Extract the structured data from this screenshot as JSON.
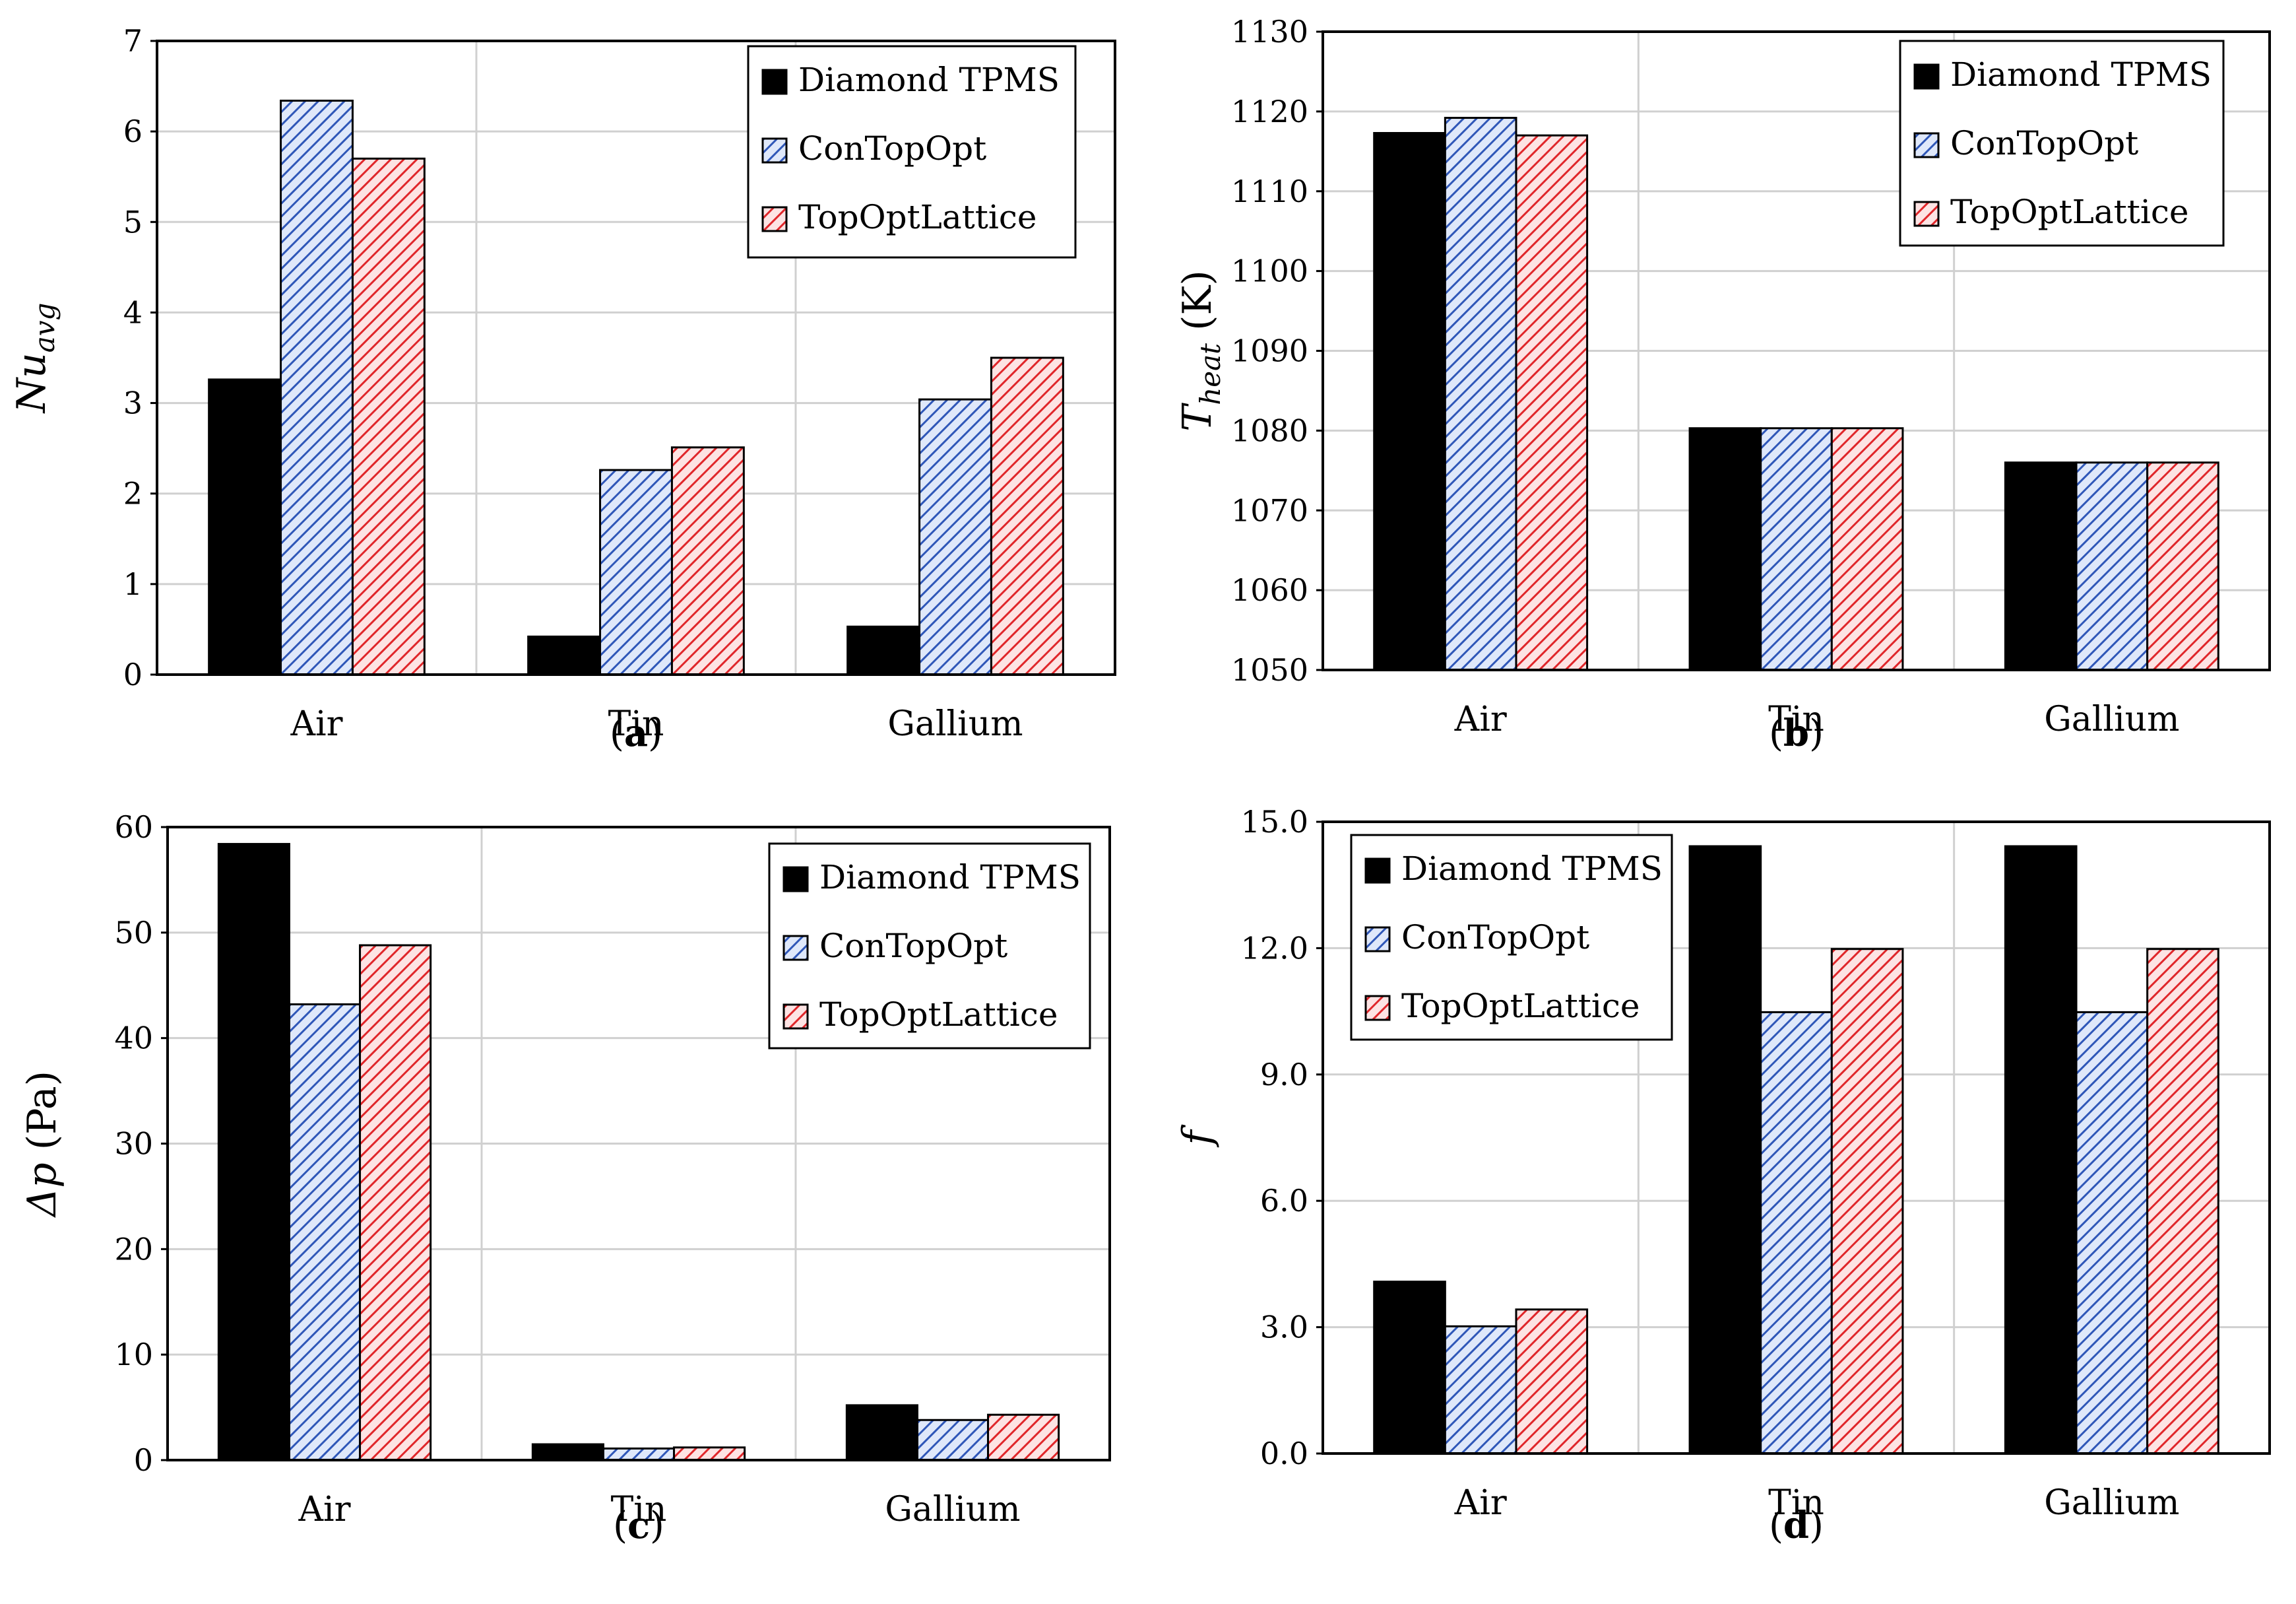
{
  "chart_data": [
    {
      "type": "bar",
      "panel": "a",
      "caption_letter": "a",
      "ylabel": {
        "main": "Nu",
        "sub": "avg"
      },
      "categories": [
        "Air",
        "Tin",
        "Gallium"
      ],
      "ylim": [
        0,
        7
      ],
      "yticks": [
        "0",
        "1",
        "2",
        "3",
        "4",
        "5",
        "6",
        "7"
      ],
      "series": [
        {
          "name": "Diamond TPMS",
          "values": [
            3.26,
            0.42,
            0.53
          ]
        },
        {
          "name": "ConTopOpt",
          "values": [
            6.34,
            2.26,
            3.04
          ]
        },
        {
          "name": "TopOptLattice",
          "values": [
            5.7,
            2.51,
            3.5
          ]
        }
      ],
      "legend": "top-right",
      "grid": true
    },
    {
      "type": "bar",
      "panel": "b",
      "caption_letter": "b",
      "ylabel": {
        "main": "T",
        "sub": "heat",
        "unit": " (K)"
      },
      "categories": [
        "Air",
        "Tin",
        "Gallium"
      ],
      "ylim": [
        1050,
        1130
      ],
      "yticks": [
        "1050",
        "1060",
        "1070",
        "1080",
        "1090",
        "1100",
        "1110",
        "1120",
        "1130"
      ],
      "series": [
        {
          "name": "Diamond TPMS",
          "values": [
            1117.3,
            1080.3,
            1076.0
          ]
        },
        {
          "name": "ConTopOpt",
          "values": [
            1119.2,
            1080.3,
            1076.0
          ]
        },
        {
          "name": "TopOptLattice",
          "values": [
            1117.0,
            1080.3,
            1076.0
          ]
        }
      ],
      "legend": "top-right",
      "grid": true
    },
    {
      "type": "bar",
      "panel": "c",
      "caption_letter": "c",
      "ylabel": {
        "main": "Δp",
        "unit": " (Pa)"
      },
      "categories": [
        "Air",
        "Tin",
        "Gallium"
      ],
      "ylim": [
        0,
        60
      ],
      "yticks": [
        "0",
        "10",
        "20",
        "30",
        "40",
        "50",
        "60"
      ],
      "series": [
        {
          "name": "Diamond TPMS",
          "values": [
            58.4,
            1.5,
            5.2
          ]
        },
        {
          "name": "ConTopOpt",
          "values": [
            43.2,
            1.1,
            3.8
          ]
        },
        {
          "name": "TopOptLattice",
          "values": [
            48.8,
            1.2,
            4.3
          ]
        }
      ],
      "legend": "top-right",
      "grid": true
    },
    {
      "type": "bar",
      "panel": "d",
      "caption_letter": "d",
      "ylabel": {
        "main": "f"
      },
      "categories": [
        "Air",
        "Tin",
        "Gallium"
      ],
      "ylim": [
        0,
        15
      ],
      "yticks": [
        "0.0",
        "3.0",
        "6.0",
        "9.0",
        "12.0",
        "15.0"
      ],
      "series": [
        {
          "name": "Diamond TPMS",
          "values": [
            4.08,
            14.42,
            14.42
          ]
        },
        {
          "name": "ConTopOpt",
          "values": [
            3.02,
            10.48,
            10.48
          ]
        },
        {
          "name": "TopOptLattice",
          "values": [
            3.42,
            11.98,
            11.98
          ]
        }
      ],
      "legend": "top-left",
      "grid": true
    }
  ],
  "colors": {
    "diamond": "#000000",
    "contopopt_line": "#2f57b8",
    "contopopt_bg": "#dfe8fa",
    "topopt_line": "#e0262a",
    "topopt_bg": "#fde3e3",
    "grid": "#d0d0d0"
  }
}
